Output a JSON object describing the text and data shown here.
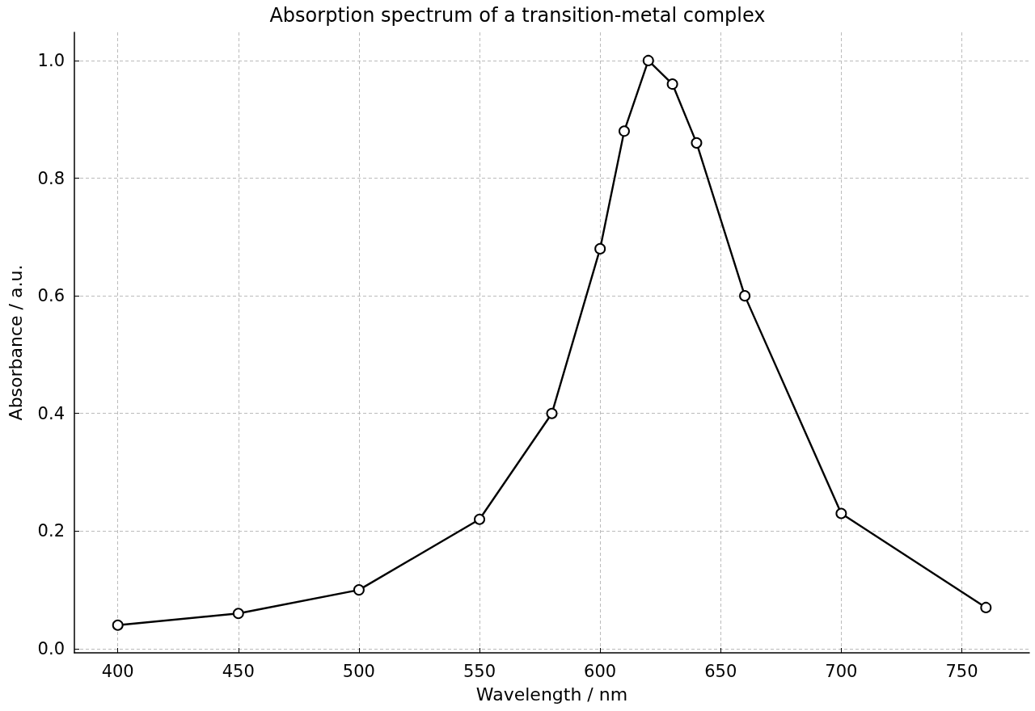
{
  "chart_data": {
    "type": "line",
    "title": "Absorption spectrum of a transition-metal complex",
    "xlabel": "Wavelength / nm",
    "ylabel": "Absorbance / a.u.",
    "x": [
      400,
      450,
      500,
      550,
      580,
      600,
      610,
      620,
      630,
      640,
      660,
      700,
      760
    ],
    "series": [
      {
        "color": "#000000",
        "values": [
          0.04,
          0.06,
          0.1,
          0.22,
          0.4,
          0.68,
          0.88,
          1.0,
          0.96,
          0.86,
          0.6,
          0.23,
          0.07
        ]
      }
    ],
    "xlim": [
      382,
      778
    ],
    "ylim": [
      -0.007,
      1.048
    ],
    "xticks": [
      400,
      450,
      500,
      550,
      600,
      650,
      700,
      750
    ],
    "yticks": [
      {
        "value": 0,
        "label": "0.0"
      },
      {
        "value": 0.2,
        "label": "0.2"
      },
      {
        "value": 0.4,
        "label": "0.4"
      },
      {
        "value": 0.6,
        "label": "0.6"
      },
      {
        "value": 0.8,
        "label": "0.8"
      },
      {
        "value": 1,
        "label": "1.0"
      }
    ],
    "grid": true,
    "marker": "circle",
    "line_style": "solid"
  }
}
